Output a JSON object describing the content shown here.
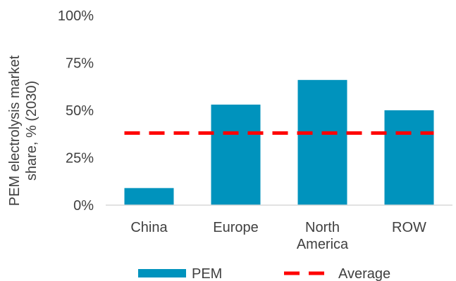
{
  "chart_data": {
    "type": "bar",
    "categories": [
      "China",
      "Europe",
      "North America",
      "ROW"
    ],
    "category_lines": [
      [
        "China"
      ],
      [
        "Europe"
      ],
      [
        "North",
        "America"
      ],
      [
        "ROW"
      ]
    ],
    "series": [
      {
        "name": "PEM",
        "values": [
          9,
          53,
          66,
          50
        ],
        "color": "#0093BD"
      }
    ],
    "average": {
      "name": "Average",
      "value": 38,
      "color": "#FF0000"
    },
    "ylabel_lines": [
      "PEM electrolysis  market",
      "share, % (2030)"
    ],
    "ylim": [
      0,
      100
    ],
    "yticks": [
      0,
      25,
      50,
      75,
      100
    ],
    "ytick_labels": [
      "0%",
      "25%",
      "50%",
      "75%",
      "100%"
    ],
    "grid": false,
    "legend": "bottom"
  }
}
